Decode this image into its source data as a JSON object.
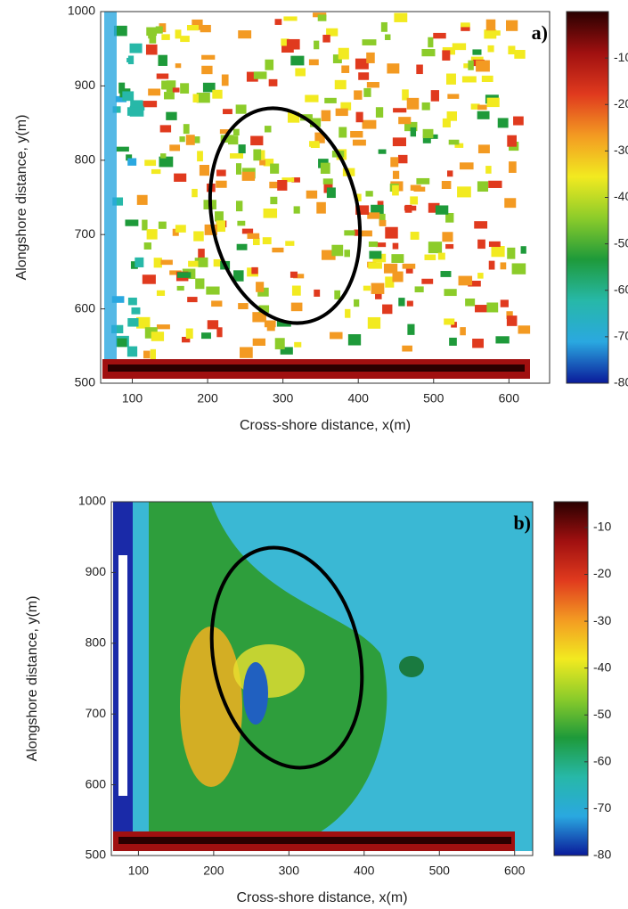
{
  "chart_data": [
    {
      "type": "heatmap",
      "panel_label": "a)",
      "xlabel": "Cross-shore distance, x(m)",
      "ylabel": "Alongshore distance, y(m)",
      "xlim": [
        58,
        654
      ],
      "xticks": [
        100,
        200,
        300,
        400,
        500,
        600
      ],
      "ylim": [
        500,
        1000
      ],
      "yticks": [
        500,
        600,
        700,
        800,
        900,
        1000
      ],
      "colorbar": {
        "clim": [
          -80,
          0
        ],
        "ticks": [
          -80,
          -70,
          -60,
          -50,
          -40,
          -30,
          -20,
          -10
        ]
      },
      "colormap": [
        "#0a1a9a",
        "#2aa8e0",
        "#27b8a8",
        "#1e9a3a",
        "#8ccc2a",
        "#f2ea20",
        "#f39a22",
        "#e03a1e",
        "#a01010",
        "#2a0000"
      ]
    },
    {
      "type": "heatmap",
      "panel_label": "b)",
      "xlabel": "Cross-shore distance, x(m)",
      "ylabel": "Alongshore distance, y(m)",
      "xlim": [
        64,
        624
      ],
      "xticks": [
        100,
        200,
        300,
        400,
        500,
        600
      ],
      "ylim": [
        500,
        1000
      ],
      "yticks": [
        500,
        600,
        700,
        800,
        900,
        1000
      ],
      "colorbar": {
        "clim": [
          -80,
          -4.5
        ],
        "ticks": [
          -80,
          -70,
          -60,
          -50,
          -40,
          -30,
          -20,
          -10
        ]
      },
      "colormap": [
        "#0a1a9a",
        "#2aa8e0",
        "#27b8a8",
        "#1e9a3a",
        "#8ccc2a",
        "#f2ea20",
        "#f39a22",
        "#e03a1e",
        "#a01010",
        "#2a0000"
      ]
    }
  ]
}
